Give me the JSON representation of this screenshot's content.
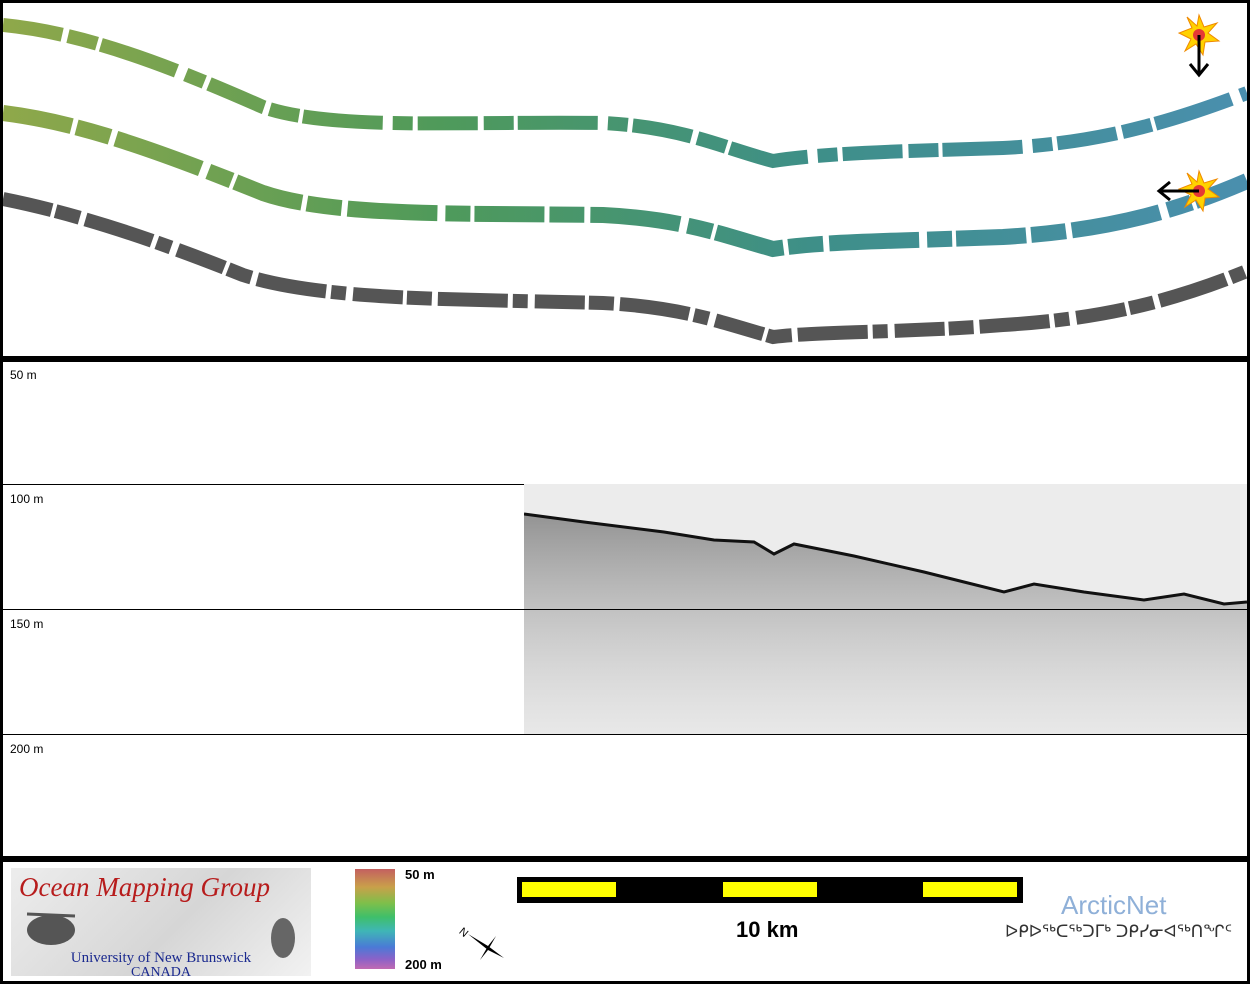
{
  "profile": {
    "depth_labels": [
      "50 m",
      "100 m",
      "150 m",
      "200 m"
    ]
  },
  "footer": {
    "omg_title": "Ocean Mapping Group",
    "omg_university": "University of New Brunswick",
    "omg_country": "CANADA",
    "colorbar_top": "50 m",
    "colorbar_bottom": "200 m",
    "north_label": "N",
    "scale_label": "10 km",
    "arcticnet_name": "ArcticNet",
    "arcticnet_syllabics": "ᐅᑭᐅᖅᑕᖅᑐᒥᒃ ᑐᑭᓯᓂᐊᖅᑎᖏᑦ"
  },
  "colors": {
    "scale_yellow": "#ffff00",
    "arcticnet_blue": "#8fb0d8",
    "omg_red": "#b71c1c",
    "omg_blue": "#1b2a8f"
  },
  "icons": [
    "sun-light-source-icon",
    "down-arrow-icon",
    "left-arrow-icon",
    "north-arrow-icon"
  ]
}
